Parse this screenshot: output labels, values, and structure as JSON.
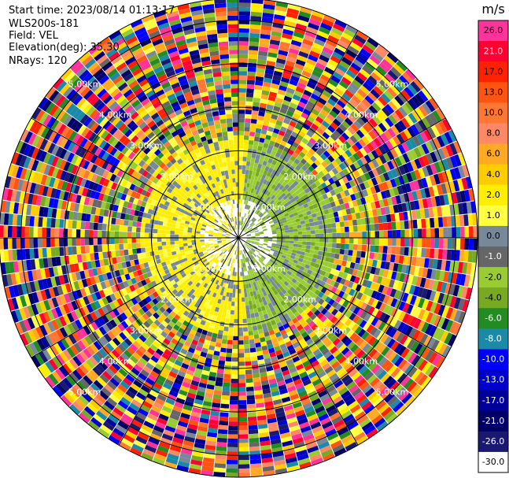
{
  "header": {
    "start_time": "Start time: 2023/08/14 01:13:17",
    "instrument": "WLS200s-181",
    "field": "Field: VEL",
    "elevation": "Elevation(deg): 35.30",
    "nrays": "NRays: 120"
  },
  "chart_data": {
    "type": "heatmap",
    "projection": "polar-ppi",
    "field": "VEL",
    "units": "m/s",
    "n_rays": 120,
    "range_rings_km": [
      1.0,
      2.0,
      3.0,
      4.0,
      5.0
    ],
    "ring_labels": [
      "1.00km",
      "2.00km",
      "3.00km",
      "4.00km",
      "5.00km"
    ],
    "max_range_km": 5.5,
    "colorbar": {
      "label": "m/s",
      "ticks": [
        "26.0",
        "21.0",
        "17.0",
        "13.0",
        "10.0",
        "8.0",
        "6.0",
        "4.0",
        "2.0",
        "1.0",
        "0.0",
        "-1.0",
        "-2.0",
        "-4.0",
        "-6.0",
        "-8.0",
        "-10.0",
        "-13.0",
        "-17.0",
        "-21.0",
        "-26.0",
        "-30.0"
      ],
      "colors": [
        "#ff3399",
        "#ff0033",
        "#ff2200",
        "#ff5511",
        "#ff7733",
        "#ff8866",
        "#ffaa22",
        "#ffcc00",
        "#ffee00",
        "#ffff44",
        "#778899",
        "#666666",
        "#99cc33",
        "#77aa22",
        "#228b22",
        "#1a8aa8",
        "#0000ff",
        "#0000cc",
        "#000099",
        "#000066",
        "#191970",
        "#ffffff"
      ]
    }
  }
}
